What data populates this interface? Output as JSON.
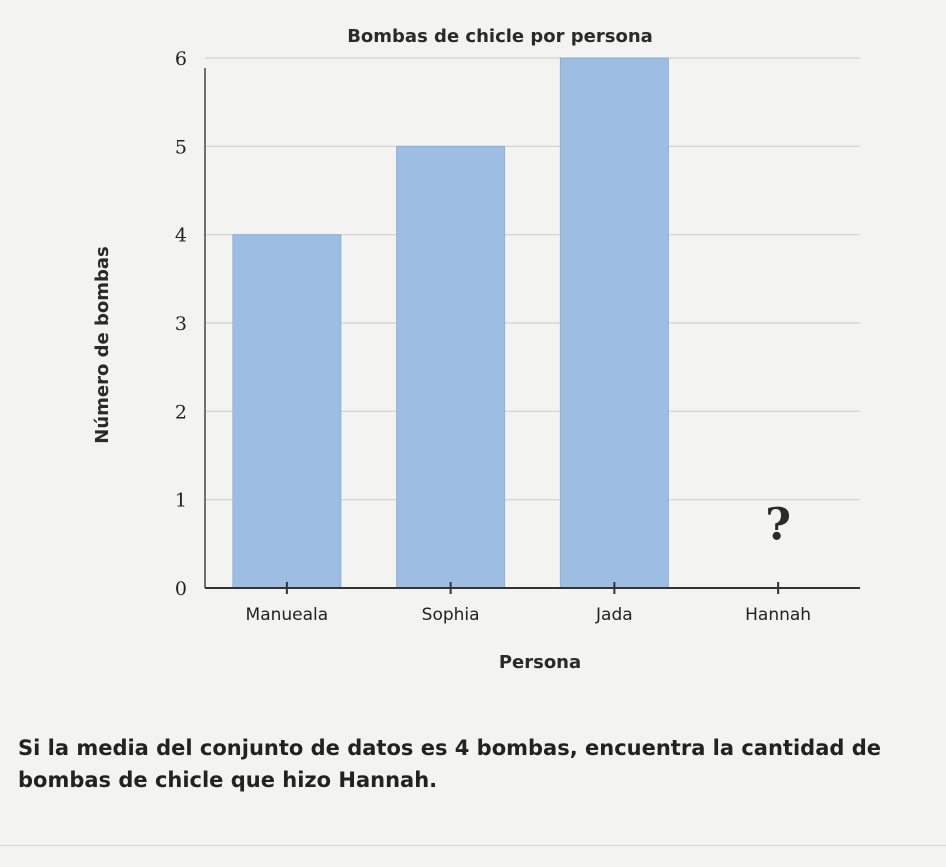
{
  "chart_data": {
    "type": "bar",
    "title": "Bombas de chicle por persona",
    "xlabel": "Persona",
    "ylabel": "Número de bombas",
    "categories": [
      "Manueala",
      "Sophia",
      "Jada",
      "Hannah"
    ],
    "values": [
      4,
      5,
      6,
      null
    ],
    "missing_marker": "?",
    "ylim": [
      0,
      6
    ],
    "yticks": [
      "0",
      "1",
      "2",
      "3",
      "4",
      "5",
      "6"
    ],
    "grid": true,
    "bar_color": "#9dbde3"
  },
  "question": {
    "line1": "Si la media del conjunto de datos es 4 bombas, encuentra la cantidad de",
    "line2": "bombas de chicle que hizo Hannah."
  }
}
